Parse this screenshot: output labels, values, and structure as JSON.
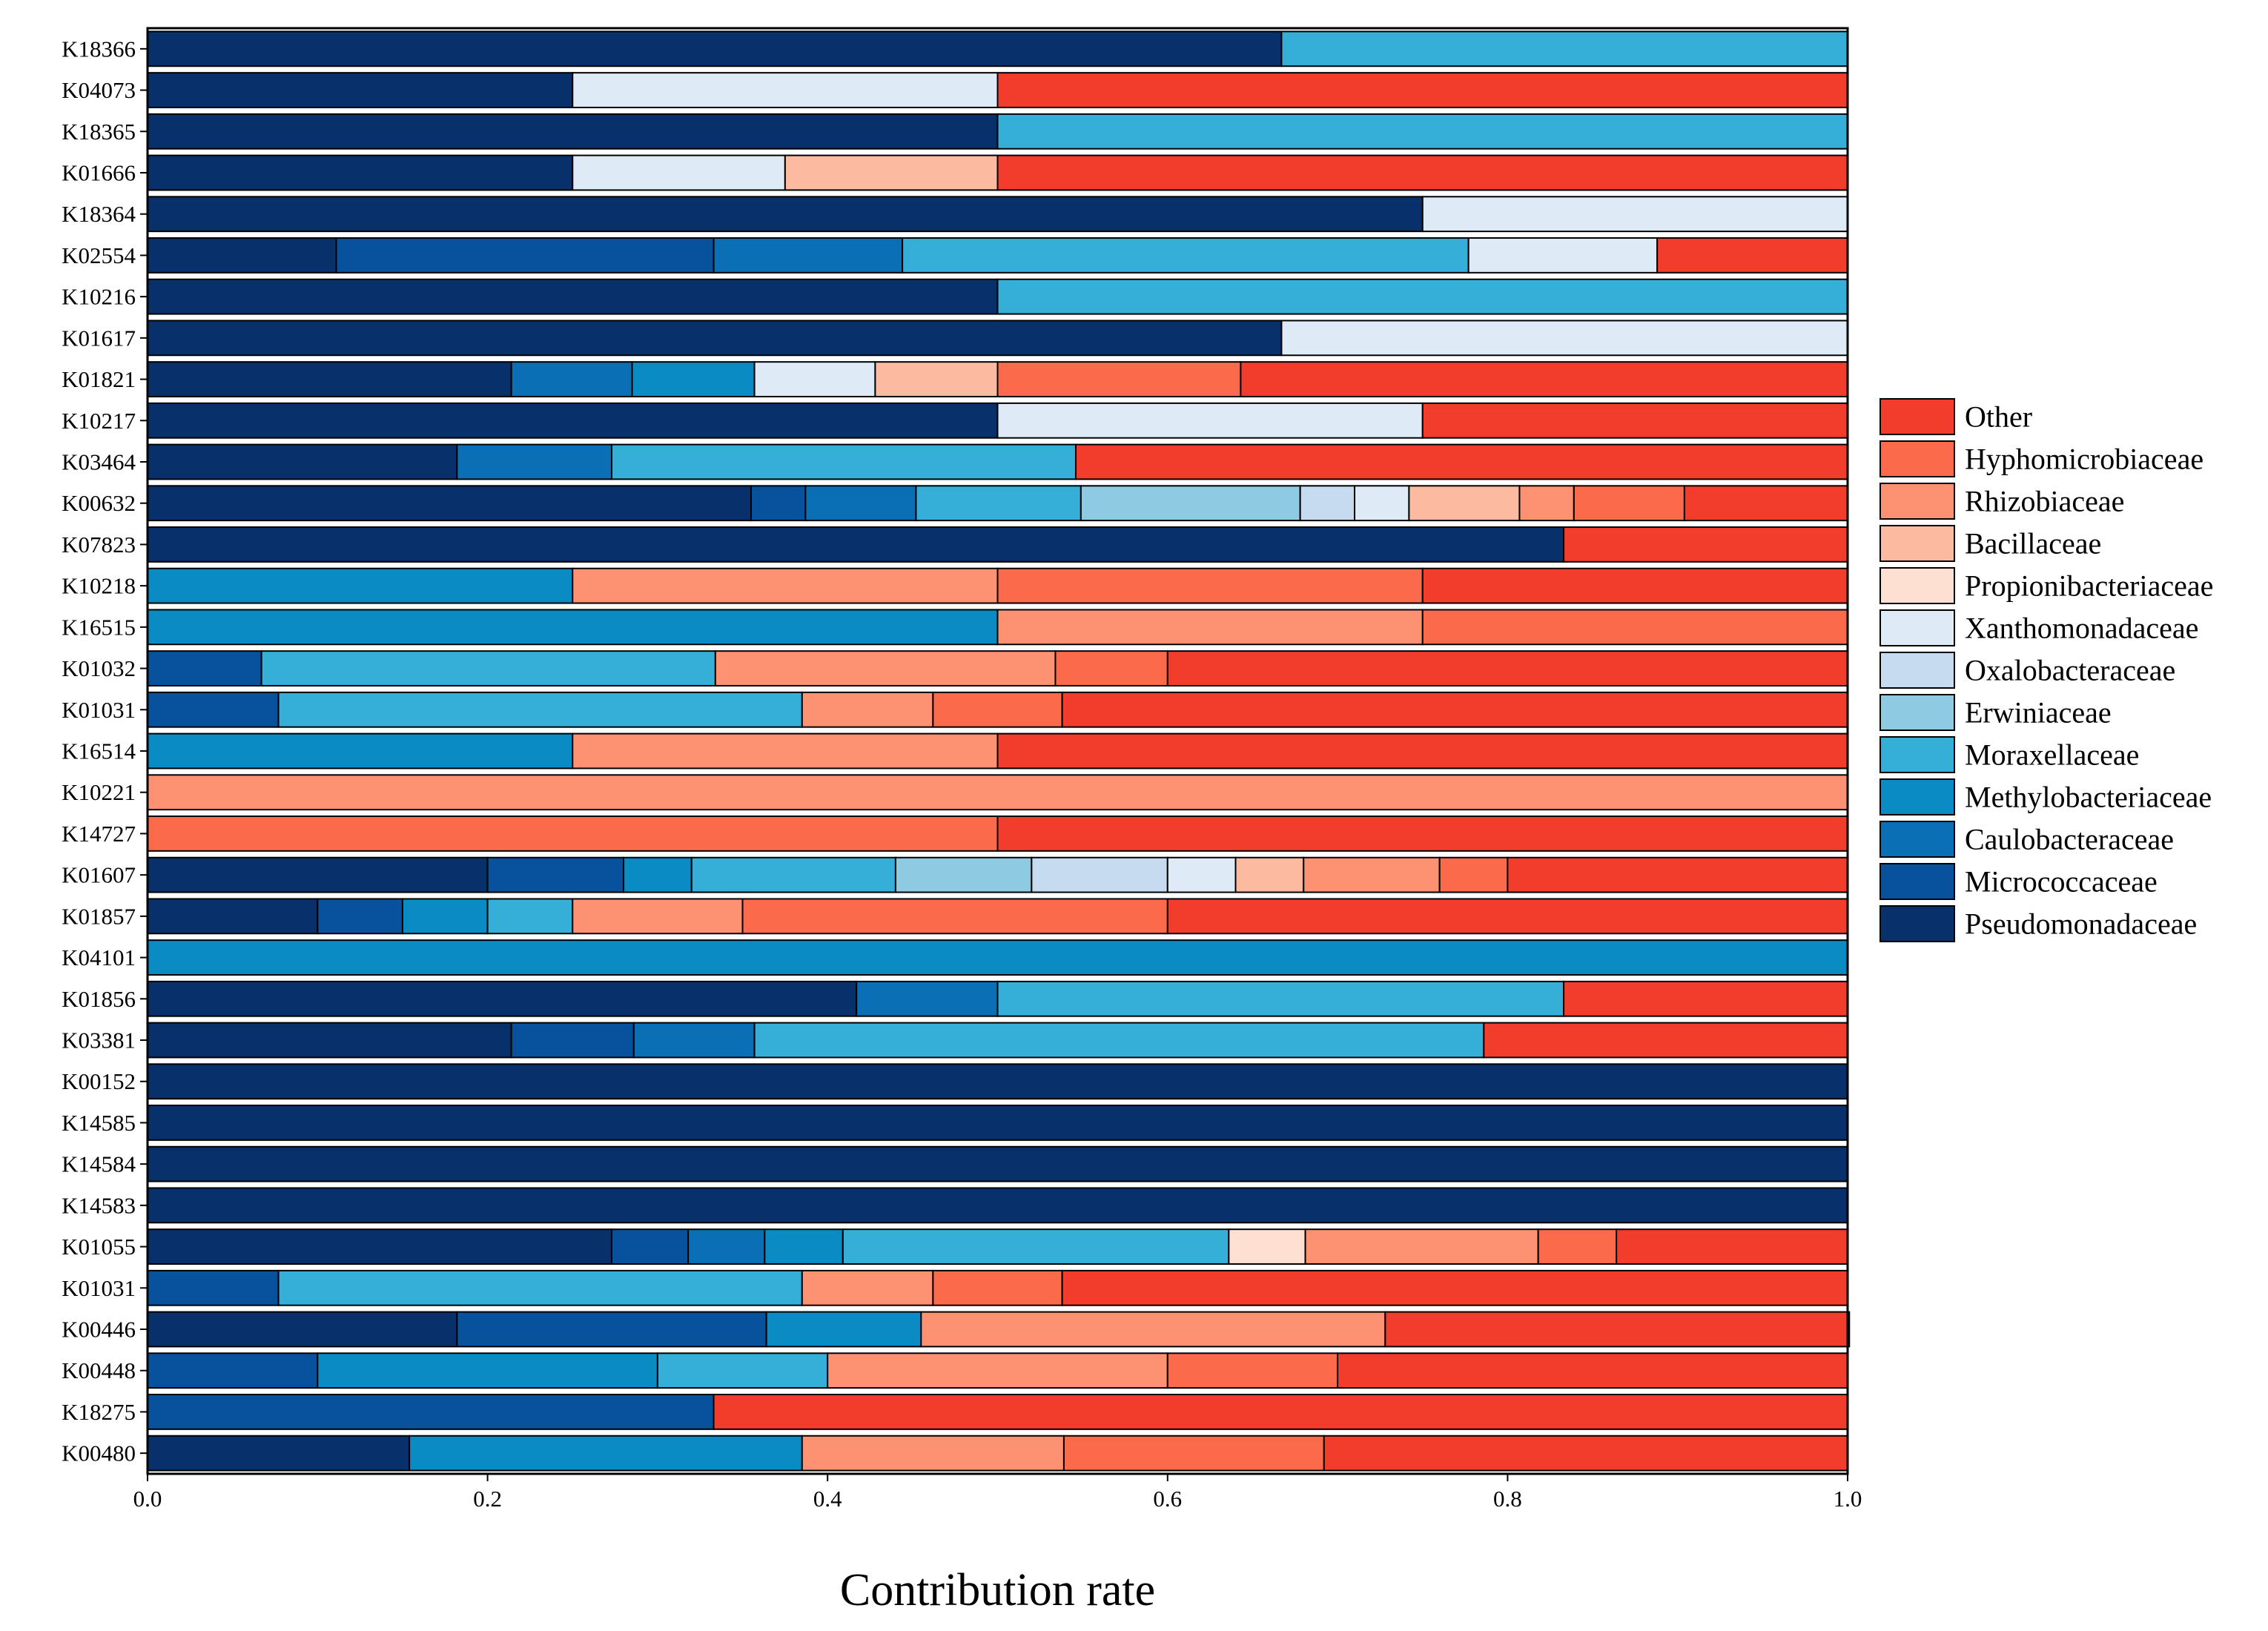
{
  "chart_data": {
    "type": "bar",
    "orientation": "horizontal",
    "stacked": true,
    "xlabel": "Contribution rate",
    "ylabel": "",
    "xlim": [
      0.0,
      1.0
    ],
    "xticks": [
      "0.0",
      "0.2",
      "0.4",
      "0.6",
      "0.8",
      "1.0"
    ],
    "grid": false,
    "legend_position": "right",
    "categories": [
      "K18366",
      "K04073",
      "K18365",
      "K01666",
      "K18364",
      "K02554",
      "K10216",
      "K01617",
      "K01821",
      "K10217",
      "K03464",
      "K00632",
      "K07823",
      "K10218",
      "K16515",
      "K01032",
      "K01031",
      "K16514",
      "K10221",
      "K14727",
      "K01607",
      "K01857",
      "K04101",
      "K01856",
      "K03381",
      "K00152",
      "K14585",
      "K14584",
      "K14583",
      "K01055",
      "K01031",
      "K00446",
      "K00448",
      "K18275",
      "K00480"
    ],
    "series": [
      {
        "name": "Pseudomonadaceae",
        "color": "#08306b",
        "values": [
          0.667,
          0.25,
          0.5,
          0.25,
          0.75,
          0.111,
          0.5,
          0.667,
          0.214,
          0.5,
          0.182,
          0.355,
          0.833,
          0,
          0,
          0,
          0,
          0,
          0,
          0,
          0.2,
          0.1,
          0,
          0.417,
          0.214,
          1,
          1,
          1,
          1,
          0.273,
          0,
          0.182,
          0,
          0,
          0.154
        ]
      },
      {
        "name": "Micrococcaceae",
        "color": "#08519c",
        "values": [
          0,
          0,
          0,
          0,
          0,
          0.222,
          0,
          0,
          0,
          0,
          0,
          0.032,
          0,
          0,
          0,
          0.067,
          0.077,
          0,
          0,
          0,
          0.08,
          0.05,
          0,
          0,
          0.072,
          0,
          0,
          0,
          0,
          0.045,
          0.077,
          0.182,
          0.1,
          0.333,
          0
        ]
      },
      {
        "name": "Caulobacteraceae",
        "color": "#0a6fb5",
        "values": [
          0,
          0,
          0,
          0,
          0,
          0.111,
          0,
          0,
          0.071,
          0,
          0.091,
          0.065,
          0,
          0,
          0,
          0,
          0,
          0,
          0,
          0,
          0,
          0,
          0,
          0.083,
          0.071,
          0,
          0,
          0,
          0,
          0.045,
          0,
          0,
          0,
          0,
          0
        ]
      },
      {
        "name": "Methylobacteriaceae",
        "color": "#0a8bc4",
        "values": [
          0,
          0,
          0,
          0,
          0,
          0,
          0,
          0,
          0.072,
          0,
          0,
          0,
          0,
          0.25,
          0.5,
          0,
          0,
          0.25,
          0,
          0,
          0.04,
          0.05,
          1,
          0,
          0,
          0,
          0,
          0,
          0,
          0.046,
          0,
          0.091,
          0.2,
          0,
          0.231
        ]
      },
      {
        "name": "Moraxellaceae",
        "color": "#35afd8",
        "values": [
          0.333,
          0,
          0.5,
          0,
          0,
          0.333,
          0.5,
          0,
          0,
          0,
          0.273,
          0.097,
          0,
          0,
          0,
          0.267,
          0.308,
          0,
          0,
          0,
          0.12,
          0.05,
          0,
          0.333,
          0.429,
          0,
          0,
          0,
          0,
          0.227,
          0.308,
          0,
          0.1,
          0,
          0
        ]
      },
      {
        "name": "Erwiniaceae",
        "color": "#8ecae1",
        "values": [
          0,
          0,
          0,
          0,
          0,
          0,
          0,
          0,
          0,
          0,
          0,
          0.129,
          0,
          0,
          0,
          0,
          0,
          0,
          0,
          0,
          0.08,
          0,
          0,
          0,
          0,
          0,
          0,
          0,
          0,
          0,
          0,
          0,
          0,
          0,
          0
        ]
      },
      {
        "name": "Oxalobacteraceae",
        "color": "#c6dbef",
        "values": [
          0,
          0,
          0,
          0,
          0,
          0,
          0,
          0,
          0,
          0,
          0,
          0.032,
          0,
          0,
          0,
          0,
          0,
          0,
          0,
          0,
          0.08,
          0,
          0,
          0,
          0,
          0,
          0,
          0,
          0,
          0,
          0,
          0,
          0,
          0,
          0
        ]
      },
      {
        "name": "Xanthomonadaceae",
        "color": "#deebf7",
        "values": [
          0,
          0.25,
          0,
          0.125,
          0.25,
          0.111,
          0,
          0.333,
          0.071,
          0.25,
          0,
          0.032,
          0,
          0,
          0,
          0,
          0,
          0,
          0,
          0,
          0.04,
          0,
          0,
          0,
          0,
          0,
          0,
          0,
          0,
          0,
          0,
          0,
          0,
          0,
          0
        ]
      },
      {
        "name": "Propionibacteriaceae",
        "color": "#fee0d2",
        "values": [
          0,
          0,
          0,
          0,
          0,
          0,
          0,
          0,
          0,
          0,
          0,
          0,
          0,
          0,
          0,
          0,
          0,
          0,
          0,
          0,
          0,
          0,
          0,
          0,
          0,
          0,
          0,
          0,
          0,
          0.045,
          0,
          0,
          0,
          0,
          0
        ]
      },
      {
        "name": "Bacillaceae",
        "color": "#fcbba1",
        "values": [
          0,
          0,
          0,
          0.125,
          0,
          0,
          0,
          0,
          0.072,
          0,
          0,
          0.065,
          0,
          0,
          0,
          0,
          0,
          0,
          0,
          0,
          0.04,
          0,
          0,
          0,
          0,
          0,
          0,
          0,
          0,
          0,
          0,
          0,
          0,
          0,
          0
        ]
      },
      {
        "name": "Rhizobiaceae",
        "color": "#fc9272",
        "values": [
          0,
          0,
          0,
          0,
          0,
          0,
          0,
          0,
          0,
          0,
          0,
          0.032,
          0,
          0.25,
          0.25,
          0.2,
          0.077,
          0.25,
          1,
          0,
          0.08,
          0.1,
          0,
          0,
          0,
          0,
          0,
          0,
          0,
          0.137,
          0.077,
          0.273,
          0.2,
          0,
          0.154
        ]
      },
      {
        "name": "Hyphomicrobiaceae",
        "color": "#fb6a4a",
        "values": [
          0,
          0,
          0,
          0,
          0,
          0,
          0,
          0,
          0.143,
          0,
          0,
          0.065,
          0,
          0.25,
          0.25,
          0.066,
          0.076,
          0,
          0,
          0.5,
          0.04,
          0.25,
          0,
          0,
          0,
          0,
          0,
          0,
          0,
          0.046,
          0.076,
          0,
          0.1,
          0,
          0.153
        ]
      },
      {
        "name": "Other",
        "color": "#f23d2c",
        "values": [
          0,
          0.5,
          0,
          0.5,
          0,
          0.112,
          0,
          0,
          0.357,
          0.25,
          0.454,
          0.096,
          0.167,
          0.25,
          0,
          0.4,
          0.462,
          0.5,
          0,
          0.5,
          0.2,
          0.4,
          0,
          0.167,
          0.214,
          0,
          0,
          0,
          0,
          0.136,
          0.462,
          0.273,
          0.3,
          0.667,
          0.308
        ]
      }
    ]
  }
}
